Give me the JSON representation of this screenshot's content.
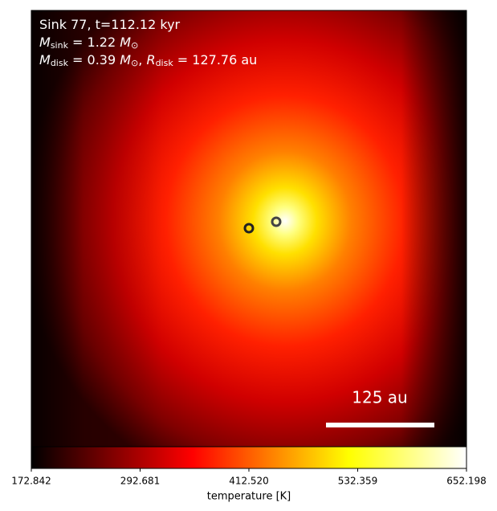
{
  "chart_data": {
    "type": "heatmap",
    "annotations": [
      [
        "Sink 77, t=112.12 kyr"
      ],
      [
        "M",
        "sink",
        " = 1.22 ",
        "M",
        "⊙"
      ],
      [
        "M",
        "disk",
        " = 0.39 ",
        "M",
        "⊙",
        ", ",
        "R",
        "disk",
        " = 127.76 au"
      ]
    ],
    "scale_bar_label": "125 au",
    "colorbar_label": "temperature [K]",
    "clim": [
      172.842,
      652.198
    ],
    "colorbar_ticks": [
      172.842,
      292.681,
      {
        "value": 412.52,
        "label": "412.520"
      },
      532.359,
      652.198
    ]
  }
}
